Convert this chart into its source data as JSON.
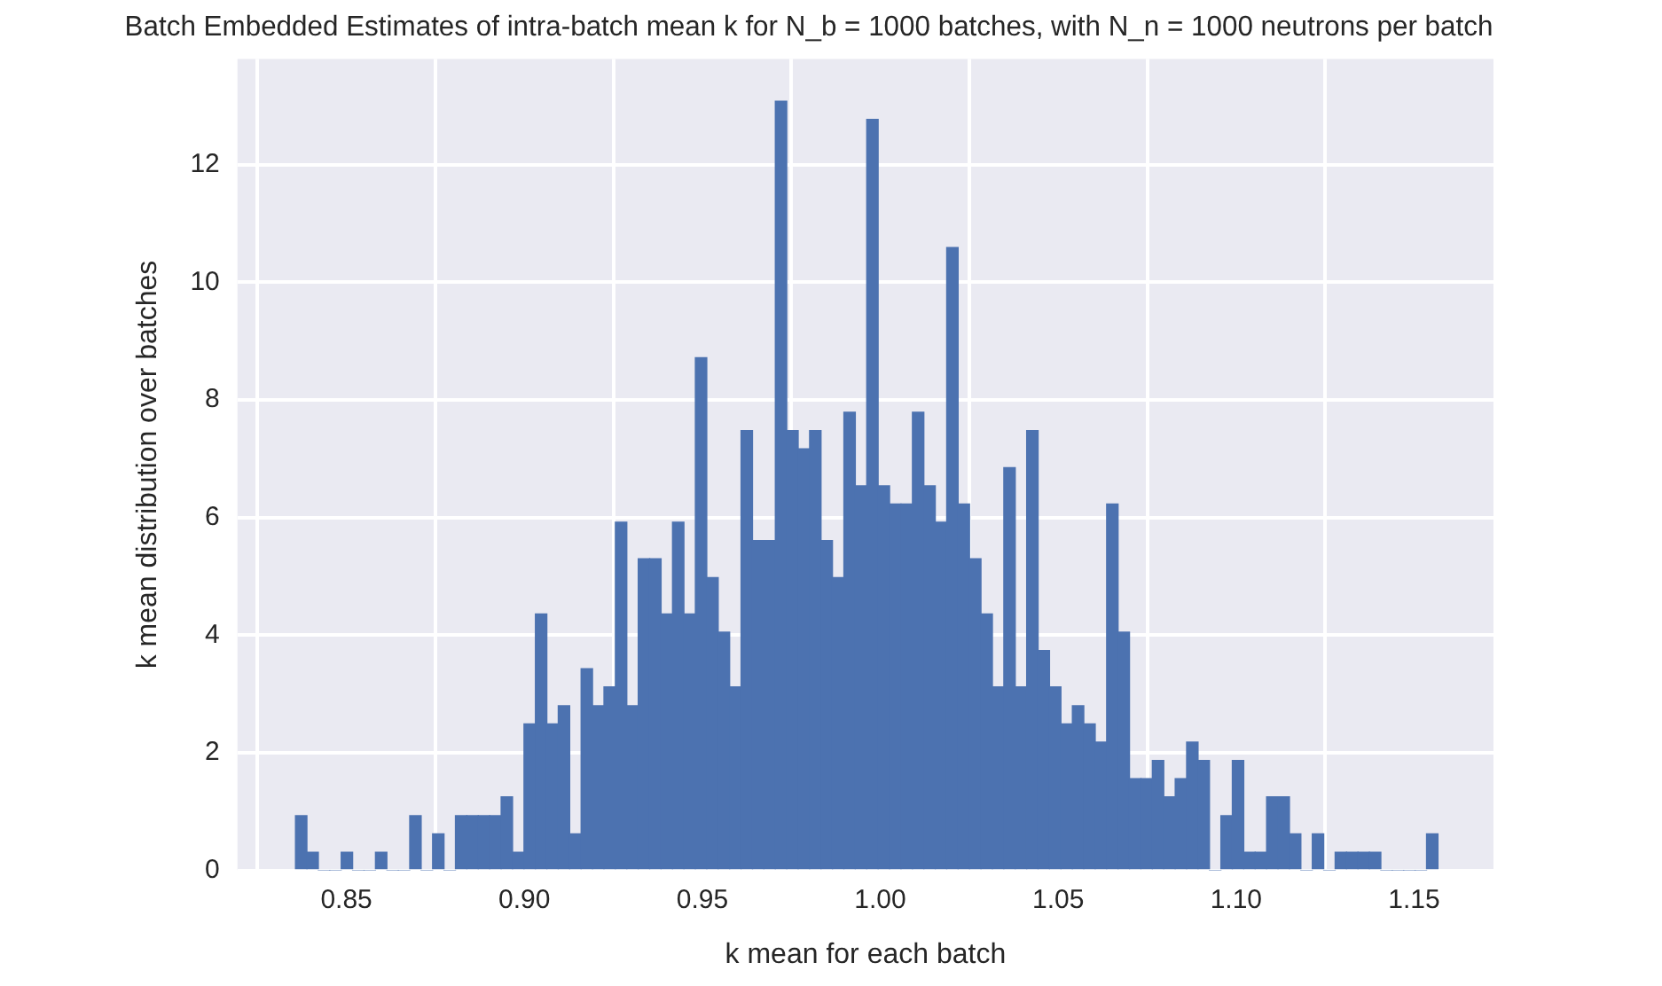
{
  "chart_data": {
    "type": "histogram",
    "title": "Batch Embedded Estimates of intra-batch mean k for N_b = 1000 batches, with N_n = 1000 neutrons per batch",
    "xlabel": "k mean for each batch",
    "ylabel": "k mean distribution over batches",
    "color": "#4c72b0",
    "grid": true,
    "bins": [
      0.8357,
      0.83891,
      0.84212,
      0.84533,
      0.84854,
      0.85175,
      0.85496,
      0.85817,
      0.86138,
      0.86459,
      0.8678,
      0.87101,
      0.87422,
      0.87743,
      0.88064,
      0.88385,
      0.88706,
      0.89027,
      0.89348,
      0.89669,
      0.8999,
      0.90311,
      0.90632,
      0.90953,
      0.91274,
      0.91595,
      0.91916,
      0.92237,
      0.92558,
      0.92879,
      0.932,
      0.93521,
      0.93842,
      0.94163,
      0.94484,
      0.94805,
      0.95126,
      0.95447,
      0.95768,
      0.96089,
      0.9641,
      0.96731,
      0.97052,
      0.97373,
      0.97694,
      0.98015,
      0.98336,
      0.98657,
      0.98978,
      0.99299,
      0.9962,
      0.99941,
      1.00262,
      1.00583,
      1.00904,
      1.01225,
      1.01546,
      1.01867,
      1.02188,
      1.02509,
      1.0283,
      1.03151,
      1.03472,
      1.03793,
      1.04114,
      1.04435,
      1.04756,
      1.05077,
      1.05398,
      1.05719,
      1.0604,
      1.06361,
      1.06682,
      1.07003,
      1.07324,
      1.07645,
      1.07966,
      1.08287,
      1.08608,
      1.08929,
      1.0925,
      1.09571,
      1.09892,
      1.10213,
      1.10534,
      1.10855,
      1.11176,
      1.11497,
      1.11818,
      1.12139,
      1.1246,
      1.12781,
      1.13102,
      1.13423,
      1.13744,
      1.14065,
      1.14386,
      1.14707,
      1.15028,
      1.15349,
      1.1567
    ],
    "values": [
      0.93,
      0.31,
      0,
      0,
      0.31,
      0,
      0,
      0.31,
      0,
      0,
      0.93,
      0,
      0.62,
      0,
      0.93,
      0.93,
      0.93,
      0.93,
      1.25,
      0.31,
      2.49,
      4.36,
      2.49,
      2.8,
      0.62,
      3.43,
      2.8,
      3.12,
      5.92,
      2.8,
      5.3,
      5.3,
      4.36,
      5.92,
      4.36,
      8.72,
      4.98,
      4.05,
      3.12,
      7.48,
      5.61,
      5.61,
      13.08,
      7.48,
      7.17,
      7.48,
      5.61,
      4.98,
      7.79,
      6.54,
      12.77,
      6.54,
      6.23,
      6.23,
      7.79,
      6.54,
      5.92,
      10.59,
      6.23,
      5.3,
      4.36,
      3.12,
      6.85,
      3.12,
      7.48,
      3.74,
      3.12,
      2.49,
      2.8,
      2.49,
      2.18,
      6.23,
      4.05,
      1.56,
      1.56,
      1.87,
      1.25,
      1.56,
      2.18,
      1.87,
      0,
      0.93,
      1.87,
      0.31,
      0.31,
      1.25,
      1.25,
      0.62,
      0,
      0.62,
      0,
      0.31,
      0.31,
      0.31,
      0.31,
      0,
      0,
      0,
      0,
      0.62
    ],
    "xlim": [
      0.8194,
      1.1723
    ],
    "xticks": [
      0.85,
      {
        "value": 0.9,
        "label": "0.90"
      },
      0.95,
      {
        "value": 1.0,
        "label": "1.00"
      },
      1.05,
      {
        "value": 1.1,
        "label": "1.10"
      },
      1.15
    ],
    "ylim": [
      0,
      13.8
    ],
    "yticks": [
      0,
      2,
      4,
      6,
      8,
      10,
      12
    ]
  }
}
